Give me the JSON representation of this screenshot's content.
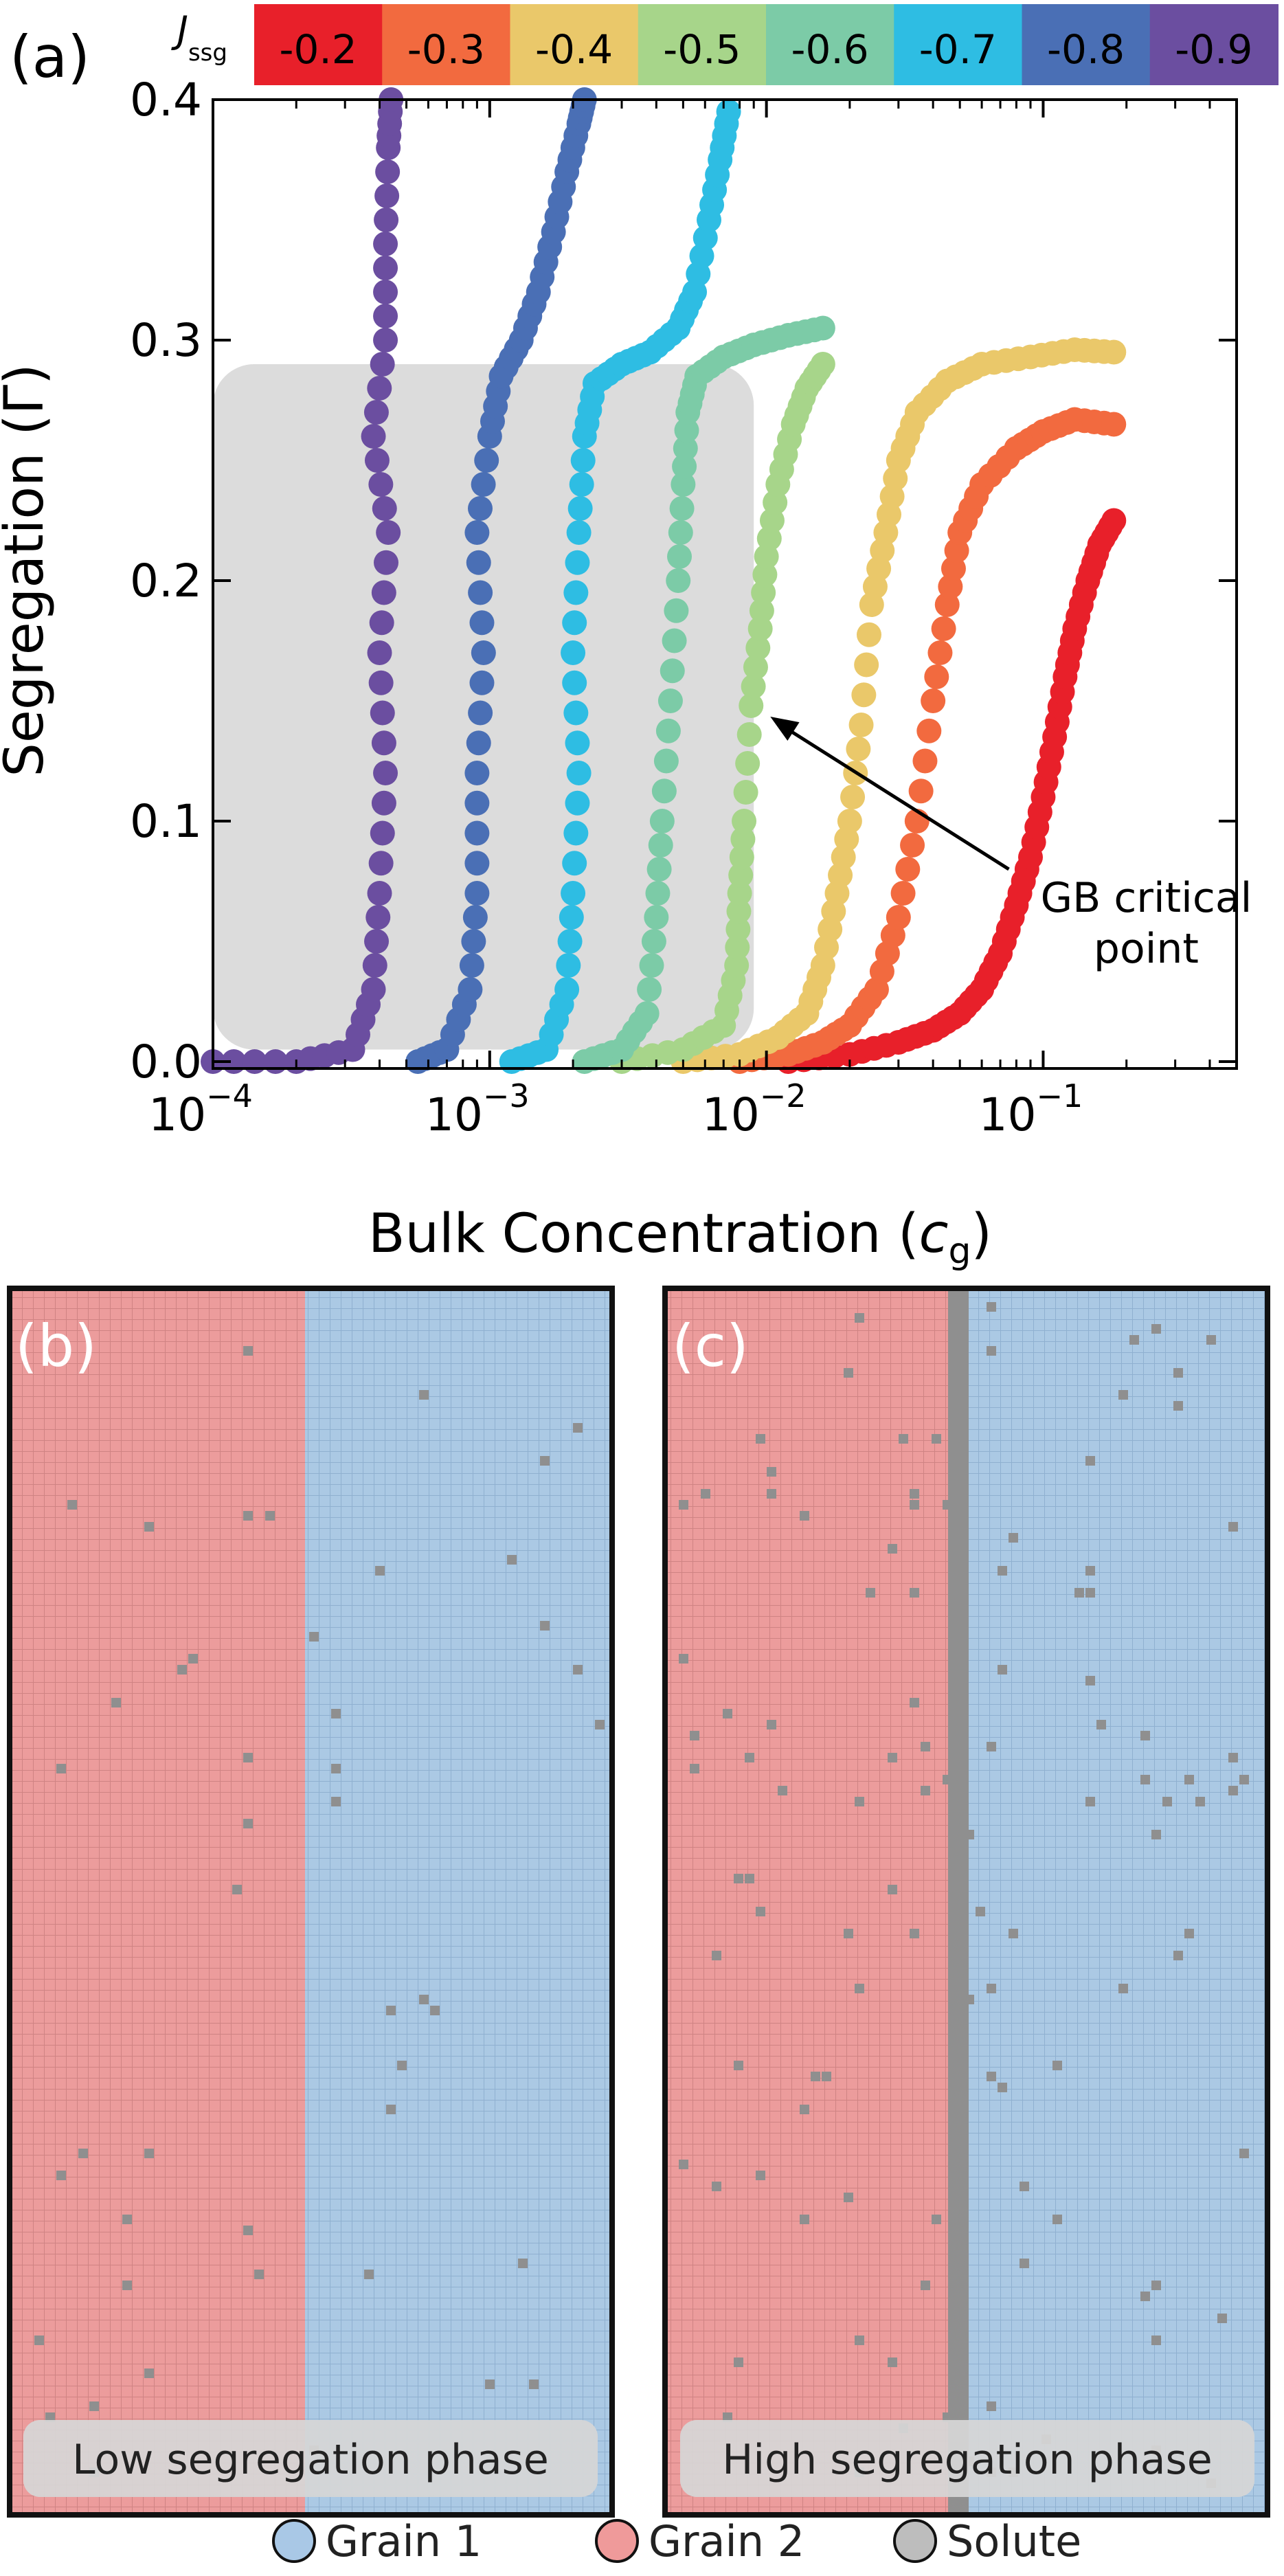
{
  "chart_data": {
    "type": "scatter",
    "panel_label": "(a)",
    "xlabel_main": "Bulk Concentration (",
    "xlabel_var": "c",
    "xlabel_sub": "g",
    "xlabel_end": ")",
    "ylabel": "Segregation (Γ)",
    "xscale": "log",
    "xlim": [
      0.0001,
      0.5
    ],
    "ylim": [
      0,
      0.4
    ],
    "x_ticks": [
      {
        "value": 0.0001,
        "base": "10",
        "exp": "−4"
      },
      {
        "value": 0.001,
        "base": "10",
        "exp": "−3"
      },
      {
        "value": 0.01,
        "base": "10",
        "exp": "−2"
      },
      {
        "value": 0.1,
        "base": "10",
        "exp": "−1"
      }
    ],
    "y_ticks": [
      {
        "value": 0.0,
        "label": "0.0"
      },
      {
        "value": 0.1,
        "label": "0.1"
      },
      {
        "value": 0.2,
        "label": "0.2"
      },
      {
        "value": 0.3,
        "label": "0.3"
      },
      {
        "value": 0.4,
        "label": "0.4"
      }
    ],
    "colorbar": {
      "title_main": "J",
      "title_sub": "ssg",
      "entries": [
        {
          "label": "-0.2",
          "color": "#e8202a"
        },
        {
          "label": "-0.3",
          "color": "#f26a3f"
        },
        {
          "label": "-0.4",
          "color": "#eac86a"
        },
        {
          "label": "-0.5",
          "color": "#a7d58a"
        },
        {
          "label": "-0.6",
          "color": "#7ccba7"
        },
        {
          "label": "-0.7",
          "color": "#2ebde3"
        },
        {
          "label": "-0.8",
          "color": "#4a6fb5"
        },
        {
          "label": "-0.9",
          "color": "#6b4ea0"
        }
      ]
    },
    "shaded_region": {
      "x_start": 0.0001,
      "x_end": 0.009,
      "y_start": 0.005,
      "y_end": 0.29,
      "color": "#dcdcdc"
    },
    "annotation": {
      "line1": "GB critical",
      "line2": "point",
      "target_x": 0.0088,
      "target_y": 0.148,
      "text_x": 0.1,
      "text_y": 0.06
    },
    "series": [
      {
        "name": "-0.2",
        "color": "#e8202a",
        "points": [
          [
            0.012,
            0.0
          ],
          [
            0.02,
            0.003
          ],
          [
            0.03,
            0.008
          ],
          [
            0.04,
            0.013
          ],
          [
            0.05,
            0.02
          ],
          [
            0.06,
            0.03
          ],
          [
            0.07,
            0.045
          ],
          [
            0.08,
            0.065
          ],
          [
            0.09,
            0.085
          ],
          [
            0.1,
            0.11
          ],
          [
            0.11,
            0.135
          ],
          [
            0.12,
            0.16
          ],
          [
            0.13,
            0.18
          ],
          [
            0.145,
            0.2
          ],
          [
            0.16,
            0.215
          ],
          [
            0.18,
            0.225
          ]
        ]
      },
      {
        "name": "-0.3",
        "color": "#f26a3f",
        "points": [
          [
            0.008,
            0.0
          ],
          [
            0.012,
            0.003
          ],
          [
            0.016,
            0.008
          ],
          [
            0.02,
            0.015
          ],
          [
            0.025,
            0.03
          ],
          [
            0.03,
            0.06
          ],
          [
            0.035,
            0.1
          ],
          [
            0.04,
            0.15
          ],
          [
            0.045,
            0.19
          ],
          [
            0.05,
            0.22
          ],
          [
            0.06,
            0.24
          ],
          [
            0.08,
            0.255
          ],
          [
            0.1,
            0.262
          ],
          [
            0.13,
            0.267
          ],
          [
            0.18,
            0.265
          ]
        ]
      },
      {
        "name": "-0.4",
        "color": "#eac86a",
        "points": [
          [
            0.005,
            0.0
          ],
          [
            0.008,
            0.003
          ],
          [
            0.011,
            0.01
          ],
          [
            0.014,
            0.02
          ],
          [
            0.016,
            0.04
          ],
          [
            0.018,
            0.07
          ],
          [
            0.02,
            0.1
          ],
          [
            0.022,
            0.14
          ],
          [
            0.024,
            0.19
          ],
          [
            0.027,
            0.22
          ],
          [
            0.03,
            0.25
          ],
          [
            0.035,
            0.27
          ],
          [
            0.045,
            0.283
          ],
          [
            0.06,
            0.29
          ],
          [
            0.09,
            0.293
          ],
          [
            0.13,
            0.296
          ],
          [
            0.18,
            0.295
          ]
        ]
      },
      {
        "name": "-0.5",
        "color": "#a7d58a",
        "points": [
          [
            0.003,
            0.0
          ],
          [
            0.005,
            0.005
          ],
          [
            0.007,
            0.015
          ],
          [
            0.0078,
            0.04
          ],
          [
            0.008,
            0.07
          ],
          [
            0.0083,
            0.1
          ],
          [
            0.0088,
            0.148
          ],
          [
            0.0095,
            0.18
          ],
          [
            0.01,
            0.21
          ],
          [
            0.011,
            0.24
          ],
          [
            0.0125,
            0.265
          ],
          [
            0.014,
            0.28
          ],
          [
            0.016,
            0.29
          ]
        ]
      },
      {
        "name": "-0.6",
        "color": "#7ccba7",
        "points": [
          [
            0.0022,
            0.0
          ],
          [
            0.003,
            0.005
          ],
          [
            0.0037,
            0.02
          ],
          [
            0.004,
            0.06
          ],
          [
            0.0042,
            0.1
          ],
          [
            0.0045,
            0.15
          ],
          [
            0.0048,
            0.2
          ],
          [
            0.005,
            0.24
          ],
          [
            0.0052,
            0.27
          ],
          [
            0.0056,
            0.285
          ],
          [
            0.007,
            0.293
          ],
          [
            0.009,
            0.298
          ],
          [
            0.012,
            0.302
          ],
          [
            0.016,
            0.305
          ]
        ]
      },
      {
        "name": "-0.7",
        "color": "#2ebde3",
        "points": [
          [
            0.0012,
            0.0
          ],
          [
            0.0016,
            0.005
          ],
          [
            0.0019,
            0.03
          ],
          [
            0.002,
            0.07
          ],
          [
            0.0021,
            0.12
          ],
          [
            0.002,
            0.17
          ],
          [
            0.0021,
            0.22
          ],
          [
            0.0022,
            0.26
          ],
          [
            0.0024,
            0.282
          ],
          [
            0.003,
            0.29
          ],
          [
            0.0038,
            0.295
          ],
          [
            0.0048,
            0.305
          ],
          [
            0.0055,
            0.32
          ],
          [
            0.0062,
            0.35
          ],
          [
            0.0068,
            0.375
          ],
          [
            0.0073,
            0.395
          ]
        ]
      },
      {
        "name": "-0.8",
        "color": "#4a6fb5",
        "points": [
          [
            0.00055,
            0.0
          ],
          [
            0.0007,
            0.005
          ],
          [
            0.00085,
            0.03
          ],
          [
            0.0009,
            0.07
          ],
          [
            0.0009,
            0.12
          ],
          [
            0.00095,
            0.17
          ],
          [
            0.0009,
            0.22
          ],
          [
            0.001,
            0.26
          ],
          [
            0.0011,
            0.285
          ],
          [
            0.0013,
            0.3
          ],
          [
            0.0015,
            0.32
          ],
          [
            0.0017,
            0.345
          ],
          [
            0.0019,
            0.37
          ],
          [
            0.0021,
            0.39
          ],
          [
            0.0022,
            0.4
          ]
        ]
      },
      {
        "name": "-0.9",
        "color": "#6b4ea0",
        "points": [
          [
            0.0001,
            0.0
          ],
          [
            0.0002,
            0.0
          ],
          [
            0.00032,
            0.005
          ],
          [
            0.00038,
            0.03
          ],
          [
            0.0004,
            0.07
          ],
          [
            0.00042,
            0.12
          ],
          [
            0.0004,
            0.17
          ],
          [
            0.00043,
            0.22
          ],
          [
            0.00038,
            0.26
          ],
          [
            0.00042,
            0.3
          ],
          [
            0.00042,
            0.34
          ],
          [
            0.00043,
            0.38
          ],
          [
            0.00044,
            0.4
          ]
        ]
      }
    ]
  },
  "panels": {
    "b": {
      "label": "(b)",
      "caption": "Low segregation phase",
      "boundary_position": 0.49,
      "solute_sites": 46
    },
    "c": {
      "label": "(c)",
      "caption": "High segregation phase",
      "boundary_position": 0.49,
      "solute_sites": 110
    }
  },
  "legend": {
    "items": [
      {
        "label": "Grain 1",
        "color": "#a9c8e6"
      },
      {
        "label": "Grain 2",
        "color": "#ef9a9a"
      },
      {
        "label": "Solute",
        "color": "#bdbdbd"
      }
    ]
  },
  "colors": {
    "grain1": "#abc9e4",
    "grain2": "#ec9c9c",
    "solute": "#8f8f8f",
    "grid_line1": "#8fb0d0",
    "grid_line2": "#cf8383"
  }
}
